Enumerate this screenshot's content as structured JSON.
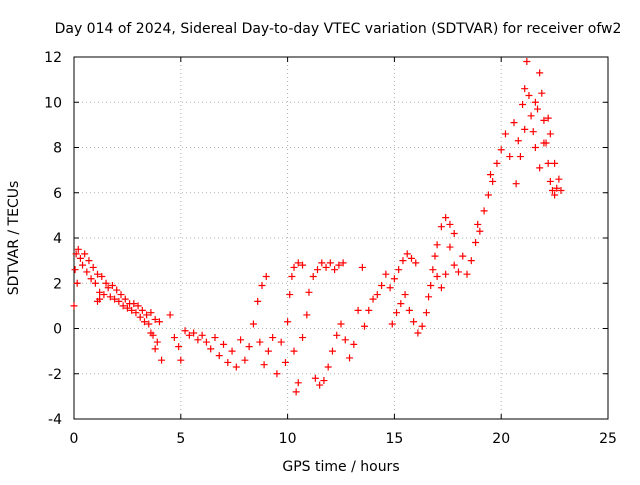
{
  "chart_data": {
    "type": "scatter",
    "title": "Day 014 of 2024, Sidereal Day-to-day VTEC variation (SDTVAR) for receiver ofw2",
    "xlabel": "GPS time / hours",
    "ylabel": "SDTVAR / TECUs",
    "xlim": [
      0,
      25
    ],
    "ylim": [
      -4,
      12
    ],
    "xticks": [
      "0",
      "5",
      "10",
      "15",
      "20",
      "25"
    ],
    "yticks": [
      "-4",
      "-2",
      "0",
      "2",
      "4",
      "6",
      "8",
      "10",
      "12"
    ],
    "grid": true,
    "marker": "plus",
    "color": "#ff0000",
    "series": [
      {
        "name": "ofw2",
        "points": [
          [
            0.0,
            1.0
          ],
          [
            0.05,
            2.6
          ],
          [
            0.1,
            3.3
          ],
          [
            0.15,
            2.0
          ],
          [
            0.2,
            3.5
          ],
          [
            0.3,
            3.1
          ],
          [
            0.4,
            2.8
          ],
          [
            0.5,
            3.3
          ],
          [
            0.6,
            2.5
          ],
          [
            0.7,
            3.0
          ],
          [
            0.8,
            2.2
          ],
          [
            0.9,
            2.7
          ],
          [
            1.0,
            2.0
          ],
          [
            1.1,
            2.4
          ],
          [
            1.2,
            1.6
          ],
          [
            1.3,
            2.3
          ],
          [
            1.1,
            1.2
          ],
          [
            1.2,
            1.3
          ],
          [
            1.4,
            1.5
          ],
          [
            1.5,
            2.0
          ],
          [
            1.6,
            1.8
          ],
          [
            1.7,
            1.4
          ],
          [
            1.8,
            1.9
          ],
          [
            1.9,
            1.3
          ],
          [
            2.0,
            1.7
          ],
          [
            2.1,
            1.2
          ],
          [
            2.2,
            1.5
          ],
          [
            2.3,
            1.0
          ],
          [
            2.4,
            1.3
          ],
          [
            2.5,
            0.9
          ],
          [
            2.6,
            1.1
          ],
          [
            2.7,
            0.8
          ],
          [
            2.8,
            1.1
          ],
          [
            2.9,
            0.7
          ],
          [
            3.0,
            1.0
          ],
          [
            3.1,
            0.5
          ],
          [
            3.2,
            0.8
          ],
          [
            3.3,
            0.3
          ],
          [
            3.4,
            0.6
          ],
          [
            3.5,
            0.2
          ],
          [
            3.6,
            0.7
          ],
          [
            3.7,
            -0.3
          ],
          [
            3.8,
            0.4
          ],
          [
            3.9,
            -0.6
          ],
          [
            4.0,
            0.3
          ],
          [
            4.1,
            -1.4
          ],
          [
            3.6,
            -0.2
          ],
          [
            3.8,
            -0.9
          ],
          [
            4.5,
            0.6
          ],
          [
            4.7,
            -0.4
          ],
          [
            4.9,
            -0.8
          ],
          [
            5.0,
            -1.4
          ],
          [
            5.2,
            -0.1
          ],
          [
            5.4,
            -0.3
          ],
          [
            5.6,
            -0.2
          ],
          [
            5.8,
            -0.5
          ],
          [
            6.0,
            -0.3
          ],
          [
            6.2,
            -0.6
          ],
          [
            6.4,
            -0.9
          ],
          [
            6.6,
            -0.4
          ],
          [
            6.8,
            -1.2
          ],
          [
            7.0,
            -0.7
          ],
          [
            7.2,
            -1.5
          ],
          [
            7.4,
            -1.0
          ],
          [
            7.6,
            -1.7
          ],
          [
            7.8,
            -0.5
          ],
          [
            8.0,
            -1.4
          ],
          [
            8.2,
            -0.8
          ],
          [
            8.4,
            0.2
          ],
          [
            8.6,
            1.2
          ],
          [
            8.8,
            1.9
          ],
          [
            9.0,
            2.3
          ],
          [
            8.7,
            -0.6
          ],
          [
            8.9,
            -1.6
          ],
          [
            9.1,
            -1.0
          ],
          [
            9.3,
            -0.4
          ],
          [
            9.5,
            -2.0
          ],
          [
            9.7,
            -0.6
          ],
          [
            9.9,
            -1.5
          ],
          [
            10.0,
            0.3
          ],
          [
            10.1,
            1.5
          ],
          [
            10.2,
            2.3
          ],
          [
            10.3,
            2.7
          ],
          [
            10.5,
            2.9
          ],
          [
            10.7,
            2.8
          ],
          [
            10.4,
            -2.8
          ],
          [
            10.5,
            -2.4
          ],
          [
            10.3,
            -1.0
          ],
          [
            10.7,
            -0.4
          ],
          [
            10.9,
            0.6
          ],
          [
            11.0,
            1.6
          ],
          [
            11.2,
            2.3
          ],
          [
            11.4,
            2.6
          ],
          [
            11.6,
            2.9
          ],
          [
            11.8,
            2.7
          ],
          [
            12.0,
            2.9
          ],
          [
            12.2,
            2.6
          ],
          [
            12.4,
            2.8
          ],
          [
            12.6,
            2.9
          ],
          [
            11.3,
            -2.2
          ],
          [
            11.5,
            -2.5
          ],
          [
            11.7,
            -2.3
          ],
          [
            11.9,
            -1.7
          ],
          [
            12.1,
            -1.0
          ],
          [
            12.3,
            -0.3
          ],
          [
            12.5,
            0.2
          ],
          [
            12.7,
            -0.5
          ],
          [
            12.9,
            -1.3
          ],
          [
            13.1,
            -0.7
          ],
          [
            13.3,
            0.8
          ],
          [
            13.5,
            2.7
          ],
          [
            13.6,
            0.1
          ],
          [
            13.8,
            0.8
          ],
          [
            14.0,
            1.3
          ],
          [
            14.2,
            1.5
          ],
          [
            14.4,
            1.9
          ],
          [
            14.6,
            2.4
          ],
          [
            14.8,
            1.8
          ],
          [
            15.0,
            2.2
          ],
          [
            15.2,
            2.6
          ],
          [
            15.4,
            3.0
          ],
          [
            15.6,
            3.3
          ],
          [
            15.8,
            3.1
          ],
          [
            16.0,
            2.9
          ],
          [
            14.9,
            0.2
          ],
          [
            15.1,
            0.7
          ],
          [
            15.3,
            1.1
          ],
          [
            15.5,
            1.5
          ],
          [
            15.7,
            0.8
          ],
          [
            15.9,
            0.3
          ],
          [
            16.1,
            -0.2
          ],
          [
            16.3,
            0.1
          ],
          [
            16.5,
            0.7
          ],
          [
            16.6,
            1.4
          ],
          [
            16.7,
            1.9
          ],
          [
            16.8,
            2.6
          ],
          [
            16.9,
            3.2
          ],
          [
            17.0,
            3.7
          ],
          [
            17.2,
            4.5
          ],
          [
            17.4,
            4.9
          ],
          [
            17.6,
            4.6
          ],
          [
            17.8,
            4.2
          ],
          [
            17.0,
            2.3
          ],
          [
            17.2,
            1.8
          ],
          [
            17.4,
            2.4
          ],
          [
            17.6,
            3.6
          ],
          [
            17.8,
            2.8
          ],
          [
            18.0,
            2.5
          ],
          [
            18.2,
            3.2
          ],
          [
            18.4,
            2.4
          ],
          [
            18.6,
            3.0
          ],
          [
            18.8,
            3.8
          ],
          [
            18.9,
            4.6
          ],
          [
            19.0,
            4.3
          ],
          [
            19.2,
            5.2
          ],
          [
            19.4,
            5.9
          ],
          [
            19.6,
            6.5
          ],
          [
            19.8,
            7.3
          ],
          [
            20.0,
            7.9
          ],
          [
            20.2,
            8.6
          ],
          [
            20.4,
            7.6
          ],
          [
            20.6,
            9.1
          ],
          [
            20.8,
            8.3
          ],
          [
            21.0,
            9.9
          ],
          [
            21.1,
            10.6
          ],
          [
            21.2,
            11.8
          ],
          [
            21.3,
            10.3
          ],
          [
            21.4,
            9.4
          ],
          [
            21.5,
            8.7
          ],
          [
            21.6,
            10.0
          ],
          [
            21.7,
            9.7
          ],
          [
            21.8,
            11.3
          ],
          [
            21.9,
            10.4
          ],
          [
            22.0,
            9.2
          ],
          [
            22.1,
            8.2
          ],
          [
            22.2,
            7.3
          ],
          [
            22.3,
            6.5
          ],
          [
            22.4,
            6.1
          ],
          [
            22.5,
            5.9
          ],
          [
            22.6,
            6.2
          ],
          [
            22.7,
            6.6
          ],
          [
            22.8,
            6.1
          ],
          [
            22.5,
            7.3
          ],
          [
            22.3,
            8.6
          ],
          [
            22.2,
            9.3
          ],
          [
            22.0,
            8.2
          ],
          [
            21.8,
            7.1
          ],
          [
            21.6,
            8.0
          ],
          [
            20.7,
            6.4
          ],
          [
            20.9,
            7.6
          ],
          [
            21.1,
            8.8
          ],
          [
            19.5,
            6.8
          ]
        ]
      }
    ]
  }
}
